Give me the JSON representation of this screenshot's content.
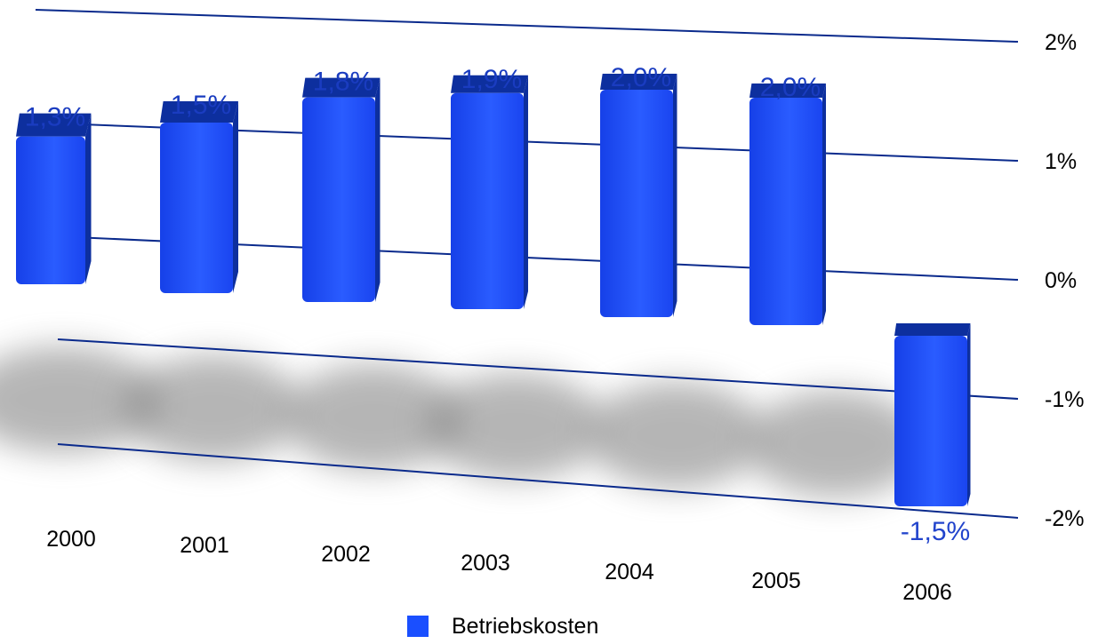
{
  "chart_data": {
    "type": "bar",
    "categories": [
      "2000",
      "2001",
      "2002",
      "2003",
      "2004",
      "2005",
      "2006"
    ],
    "series": [
      {
        "name": "Betriebskosten",
        "values": [
          1.3,
          1.5,
          1.8,
          1.9,
          2.0,
          2.0,
          -1.5
        ],
        "data_labels": [
          "1,3%",
          "1,5%",
          "1,8%",
          "1,9%",
          "2,0%",
          "2,0%",
          "-1,5%"
        ]
      }
    ],
    "yticks": [
      "2%",
      "1%",
      "0%",
      "-1%",
      "-2%"
    ],
    "ytick_values": [
      2,
      1,
      0,
      -1,
      -2
    ],
    "ylim": [
      -2,
      2
    ],
    "grid": true,
    "legend": "bottom",
    "colors": {
      "bar": "#1a4fff",
      "bar_dark": "#0d2f9e",
      "grid": "#0a2a8c"
    }
  }
}
